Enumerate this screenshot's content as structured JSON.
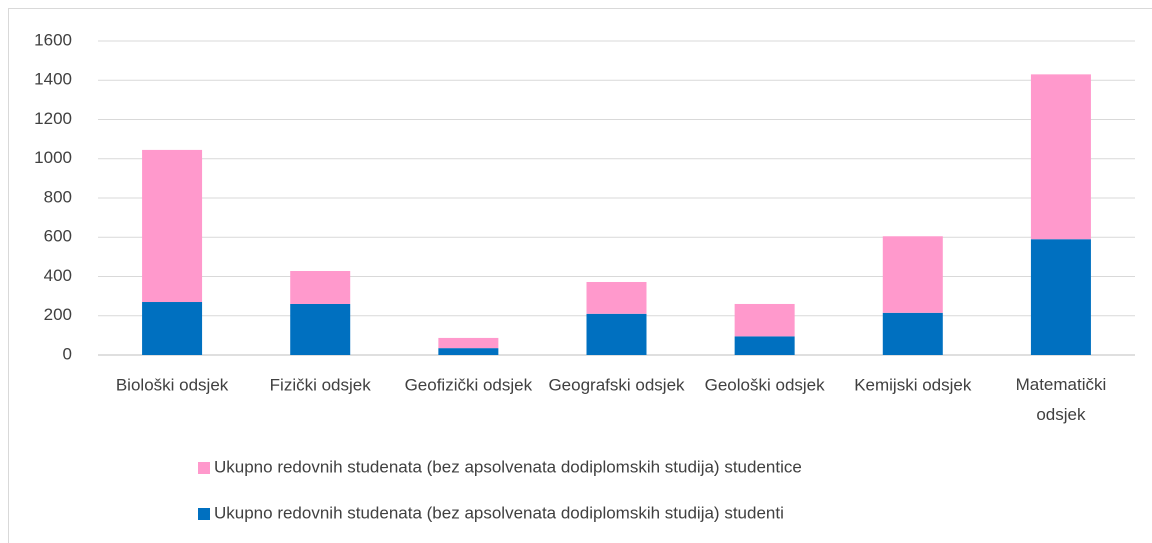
{
  "chart_data": {
    "type": "stacked_bar",
    "categories": [
      "Biološki odsjek",
      "Fizički odsjek",
      "Geofizički odsjek",
      "Geografski odsjek",
      "Geološki odsjek",
      "Kemijski odsjek",
      "Matematički odsjek"
    ],
    "series": [
      {
        "name": "Ukupno redovnih studenata (bez apsolvenata dodiplomskih studija) studenti",
        "color": "#0070c0",
        "values": [
          270,
          260,
          35,
          210,
          95,
          215,
          590
        ]
      },
      {
        "name": "Ukupno redovnih studenata (bez apsolvenata dodiplomskih studija) studentice",
        "color": "#ff99cc",
        "values": [
          775,
          168,
          52,
          162,
          165,
          390,
          840
        ]
      }
    ],
    "ylim": [
      0,
      1600
    ],
    "yticks": [
      0,
      200,
      400,
      600,
      800,
      1000,
      1200,
      1400,
      1600
    ],
    "grid": true
  }
}
